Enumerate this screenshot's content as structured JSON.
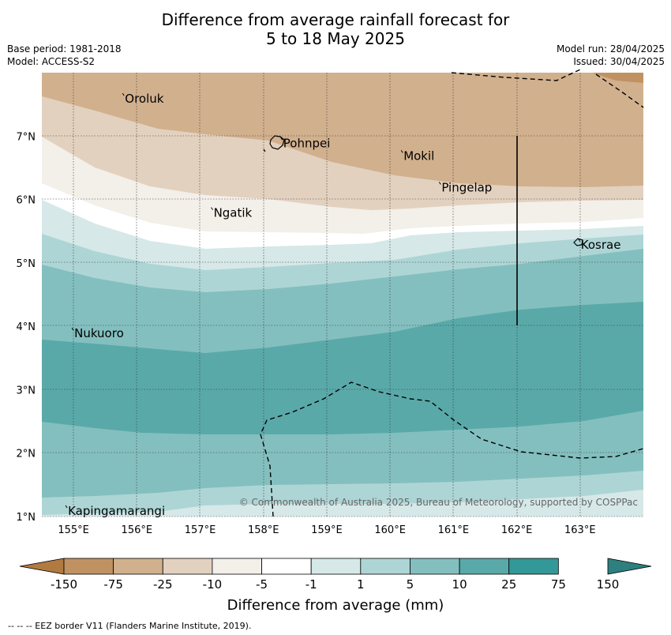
{
  "title": {
    "line1": "Difference from average rainfall forecast for",
    "line2": "5 to 18 May 2025"
  },
  "info_left": {
    "base_period": "Base period: 1981-2018",
    "model": "Model: ACCESS-S2"
  },
  "info_right": {
    "model_run": "Model run: 28/04/2025",
    "issued": "Issued: 30/04/2025"
  },
  "map": {
    "lon_range": [
      154.5,
      164
    ],
    "lat_range": [
      1,
      8
    ],
    "lon_ticks": [
      "155°E",
      "156°E",
      "157°E",
      "158°E",
      "159°E",
      "160°E",
      "161°E",
      "162°E",
      "163°E"
    ],
    "lat_ticks": [
      "1°N",
      "2°N",
      "3°N",
      "4°N",
      "5°N",
      "6°N",
      "7°N"
    ],
    "places": [
      {
        "name": "Oroluk",
        "lon": 155.8,
        "lat": 7.6
      },
      {
        "name": "Pohnpei",
        "lon": 158.3,
        "lat": 6.9
      },
      {
        "name": "Mokil",
        "lon": 160.2,
        "lat": 6.7
      },
      {
        "name": "Pingelap",
        "lon": 160.8,
        "lat": 6.2
      },
      {
        "name": "Ngatik",
        "lon": 157.2,
        "lat": 5.8
      },
      {
        "name": "Kosrae",
        "lon": 163.0,
        "lat": 5.3
      },
      {
        "name": "Nukuoro",
        "lon": 155.0,
        "lat": 3.9
      },
      {
        "name": "Kapingamarangi",
        "lon": 154.9,
        "lat": 1.1
      }
    ],
    "copyright": "© Commonwealth of Australia 2025, Bureau of Meteorology, supported by COSPPac"
  },
  "colorbar": {
    "title": "Difference from average (mm)",
    "tick_labels": [
      "-150",
      "-75",
      "-25",
      "-10",
      "-5",
      "-1",
      "1",
      "5",
      "10",
      "25",
      "75",
      "150"
    ],
    "colors": [
      "#b07a40",
      "#c09262",
      "#d1b08e",
      "#e3d1bf",
      "#f3efe9",
      "#ffffff",
      "#d6e8e8",
      "#aed5d5",
      "#84bfbf",
      "#5aa9a9",
      "#339898",
      "#2e7f7f"
    ]
  },
  "footer": "--  --  -- EEZ border V11 (Flanders Marine Institute, 2019)."
}
